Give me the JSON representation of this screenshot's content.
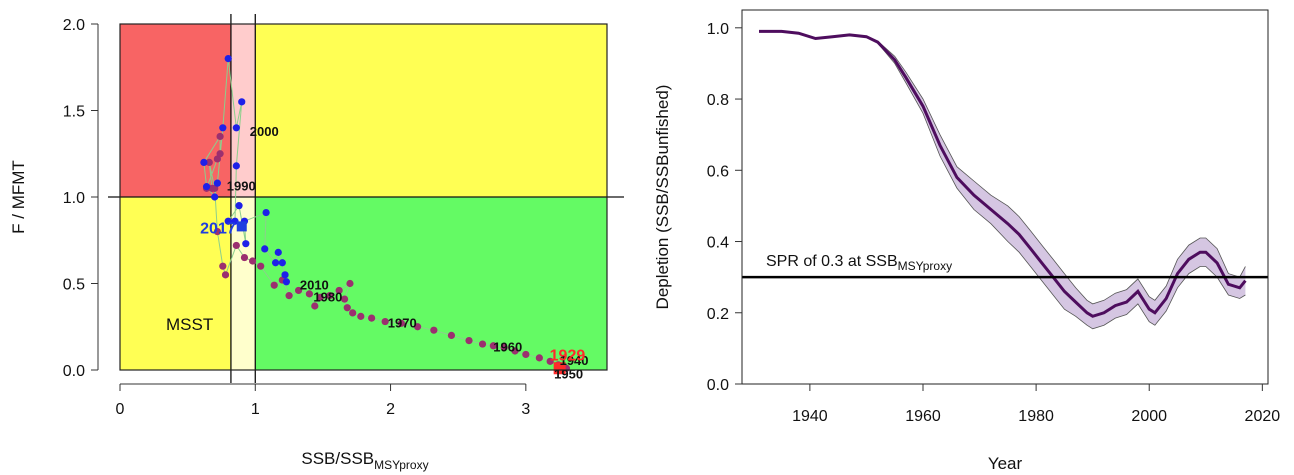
{
  "colors": {
    "red_zone": "#f86464",
    "yellow_zone": "#ffff54",
    "green_zone": "#64fa64",
    "light_red_zone": "#ffcccc",
    "light_yellow_zone": "#ffffcc",
    "point_early": "#9b2f6f",
    "point_late": "#1e20e8",
    "trajectory_line": "#8ccf8c",
    "first_year": "#ff2a2a",
    "last_year": "#1f3ee0",
    "depletion_line": "#4e0d5e",
    "depletion_band": "#d5c6e2"
  },
  "chart_data": [
    {
      "type": "scatter",
      "xlabel": "SSB/SSB",
      "xlabel_sub": "MSYproxy",
      "ylabel": "F / MFMT",
      "xlim": [
        0,
        3.6
      ],
      "ylim": [
        0,
        2.0
      ],
      "xticks": [
        "0",
        "1",
        "2",
        "3"
      ],
      "yticks": [
        "0.0",
        "0.5",
        "1.0",
        "1.5",
        "2.0"
      ],
      "msst": 0.82,
      "msst_label": "MSST",
      "reference_lines": {
        "x": 1.0,
        "y": 1.0
      },
      "zones": [
        {
          "name": "overfished-overfishing",
          "x": [
            0,
            0.82
          ],
          "y": [
            1,
            2
          ],
          "color": "red_zone"
        },
        {
          "name": "between-msst-overfishing",
          "x": [
            0.82,
            1
          ],
          "y": [
            1,
            2
          ],
          "color": "light_red_zone"
        },
        {
          "name": "healthy-overfishing",
          "x": [
            1,
            3.6
          ],
          "y": [
            1,
            2
          ],
          "color": "yellow_zone"
        },
        {
          "name": "overfished-no-overfishing",
          "x": [
            0,
            0.82
          ],
          "y": [
            0,
            1
          ],
          "color": "yellow_zone"
        },
        {
          "name": "between-msst-no-overfishing",
          "x": [
            0.82,
            1
          ],
          "y": [
            0,
            1
          ],
          "color": "light_yellow_zone"
        },
        {
          "name": "healthy",
          "x": [
            1,
            3.6
          ],
          "y": [
            0,
            1
          ],
          "color": "green_zone"
        }
      ],
      "points_early": [
        [
          3.3,
          0.01
        ],
        [
          3.28,
          0.02
        ],
        [
          3.24,
          0.03
        ],
        [
          3.18,
          0.05
        ],
        [
          3.1,
          0.07
        ],
        [
          3.0,
          0.09
        ],
        [
          2.92,
          0.11
        ],
        [
          2.84,
          0.13
        ],
        [
          2.76,
          0.14
        ],
        [
          2.68,
          0.15
        ],
        [
          2.58,
          0.17
        ],
        [
          2.45,
          0.2
        ],
        [
          2.32,
          0.23
        ],
        [
          2.2,
          0.25
        ],
        [
          2.08,
          0.27
        ],
        [
          1.96,
          0.28
        ],
        [
          1.86,
          0.3
        ],
        [
          1.78,
          0.31
        ],
        [
          1.72,
          0.33
        ],
        [
          1.68,
          0.36
        ],
        [
          1.66,
          0.41
        ],
        [
          1.7,
          0.5
        ],
        [
          1.62,
          0.46
        ],
        [
          1.55,
          0.43
        ],
        [
          1.48,
          0.42
        ],
        [
          1.44,
          0.37
        ],
        [
          1.4,
          0.44
        ],
        [
          1.32,
          0.46
        ],
        [
          1.25,
          0.43
        ],
        [
          1.2,
          0.52
        ],
        [
          1.14,
          0.49
        ],
        [
          1.04,
          0.6
        ],
        [
          0.98,
          0.63
        ],
        [
          0.92,
          0.65
        ],
        [
          0.86,
          0.72
        ],
        [
          0.78,
          0.55
        ],
        [
          0.76,
          0.6
        ],
        [
          0.72,
          0.8
        ],
        [
          0.7,
          1.05
        ],
        [
          0.66,
          1.2
        ],
        [
          0.68,
          1.05
        ],
        [
          0.64,
          1.05
        ],
        [
          0.72,
          1.22
        ],
        [
          0.74,
          1.25
        ],
        [
          0.74,
          1.35
        ]
      ],
      "points_late": [
        [
          0.62,
          1.2
        ],
        [
          0.64,
          1.06
        ],
        [
          0.7,
          1.0
        ],
        [
          0.72,
          1.08
        ],
        [
          0.76,
          1.4
        ],
        [
          0.8,
          1.8
        ],
        [
          0.86,
          1.4
        ],
        [
          0.9,
          1.55
        ],
        [
          0.86,
          1.18
        ],
        [
          0.85,
          0.86
        ],
        [
          0.8,
          0.86
        ],
        [
          0.88,
          0.95
        ],
        [
          0.93,
          0.73
        ],
        [
          0.92,
          0.86
        ],
        [
          1.08,
          0.91
        ],
        [
          1.07,
          0.7
        ],
        [
          1.15,
          0.62
        ],
        [
          1.17,
          0.68
        ],
        [
          1.2,
          0.62
        ],
        [
          1.22,
          0.55
        ],
        [
          1.23,
          0.51
        ]
      ],
      "year_labels": [
        {
          "label": "2000",
          "x": 0.93,
          "y": 1.4
        },
        {
          "label": "1990",
          "x": 0.76,
          "y": 1.05
        },
        {
          "label": "2010",
          "x": 1.3,
          "y": 0.5
        },
        {
          "label": "1980",
          "x": 1.4,
          "y": 0.43
        },
        {
          "label": "1970",
          "x": 1.95,
          "y": 0.28
        },
        {
          "label": "1960",
          "x": 2.73,
          "y": 0.13
        },
        {
          "label": "1940",
          "x": 3.22,
          "y": 0.03
        },
        {
          "label": "1950",
          "x": 3.18,
          "y": 0.01
        }
      ],
      "first_year": {
        "label": "1929",
        "x": 3.25,
        "y": 0.01
      },
      "last_year": {
        "label": "2017",
        "x": 0.9,
        "y": 0.83
      }
    },
    {
      "type": "area",
      "xlabel": "Year",
      "ylabel": "Depletion (SSB/SSBunfished)",
      "xlim": [
        1928,
        2021
      ],
      "ylim": [
        0,
        1.05
      ],
      "xticks": [
        "1940",
        "1960",
        "1980",
        "2000",
        "2020"
      ],
      "yticks": [
        "0.0",
        "0.2",
        "0.4",
        "0.6",
        "0.8",
        "1.0"
      ],
      "reference_line": 0.3,
      "reference_label": "SPR of 0.3 at SSB",
      "reference_label_sub": "MSYproxy",
      "x": [
        1931,
        1935,
        1938,
        1941,
        1944,
        1947,
        1950,
        1952,
        1955,
        1957,
        1960,
        1963,
        1966,
        1969,
        1972,
        1975,
        1977,
        1979,
        1981,
        1983,
        1985,
        1987,
        1989,
        1990,
        1992,
        1994,
        1996,
        1998,
        2000,
        2001,
        2003,
        2005,
        2007,
        2009,
        2010,
        2012,
        2014,
        2016,
        2017
      ],
      "y": [
        0.99,
        0.99,
        0.985,
        0.97,
        0.975,
        0.98,
        0.975,
        0.96,
        0.91,
        0.86,
        0.78,
        0.67,
        0.58,
        0.53,
        0.49,
        0.45,
        0.42,
        0.38,
        0.34,
        0.3,
        0.26,
        0.23,
        0.2,
        0.19,
        0.2,
        0.22,
        0.23,
        0.26,
        0.21,
        0.2,
        0.24,
        0.31,
        0.35,
        0.37,
        0.37,
        0.34,
        0.28,
        0.27,
        0.29
      ],
      "upper": [
        0.99,
        0.99,
        0.985,
        0.97,
        0.975,
        0.98,
        0.975,
        0.963,
        0.92,
        0.875,
        0.8,
        0.7,
        0.61,
        0.57,
        0.53,
        0.5,
        0.47,
        0.43,
        0.39,
        0.35,
        0.31,
        0.27,
        0.235,
        0.225,
        0.235,
        0.255,
        0.265,
        0.295,
        0.245,
        0.235,
        0.275,
        0.35,
        0.39,
        0.41,
        0.41,
        0.38,
        0.31,
        0.3,
        0.33
      ],
      "lower": [
        0.99,
        0.99,
        0.985,
        0.97,
        0.975,
        0.98,
        0.975,
        0.957,
        0.9,
        0.845,
        0.76,
        0.64,
        0.55,
        0.49,
        0.45,
        0.4,
        0.37,
        0.33,
        0.29,
        0.25,
        0.21,
        0.19,
        0.165,
        0.155,
        0.165,
        0.185,
        0.195,
        0.225,
        0.175,
        0.165,
        0.205,
        0.27,
        0.31,
        0.33,
        0.33,
        0.3,
        0.25,
        0.24,
        0.25
      ]
    }
  ]
}
